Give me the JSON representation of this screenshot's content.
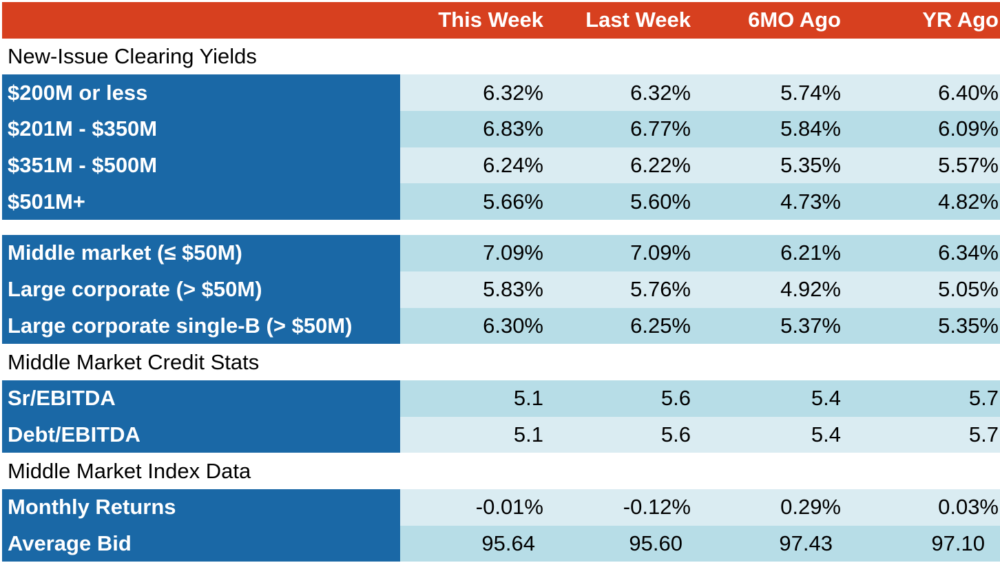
{
  "columns": [
    "This Week",
    "Last Week",
    "6MO Ago",
    "YR Ago"
  ],
  "sections": {
    "clearing": "New-Issue Clearing Yields",
    "credit": "Middle Market Credit Stats",
    "index": "Middle Market Index Data"
  },
  "rows": {
    "r0": {
      "label": "$200M or less",
      "v": [
        "6.32%",
        "6.32%",
        "5.74%",
        "6.40%"
      ]
    },
    "r1": {
      "label": "$201M - $350M",
      "v": [
        "6.83%",
        "6.77%",
        "5.84%",
        "6.09%"
      ]
    },
    "r2": {
      "label": "$351M - $500M",
      "v": [
        "6.24%",
        "6.22%",
        "5.35%",
        "5.57%"
      ]
    },
    "r3": {
      "label": "$501M+",
      "v": [
        "5.66%",
        "5.60%",
        "4.73%",
        "4.82%"
      ]
    },
    "r4": {
      "label": "Middle market (≤ $50M)",
      "v": [
        "7.09%",
        "7.09%",
        "6.21%",
        "6.34%"
      ]
    },
    "r5": {
      "label": "Large corporate (> $50M)",
      "v": [
        "5.83%",
        "5.76%",
        "4.92%",
        "5.05%"
      ]
    },
    "r6": {
      "label": "Large corporate single-B (> $50M)",
      "v": [
        "6.30%",
        "6.25%",
        "5.37%",
        "5.35%"
      ]
    },
    "r7": {
      "label": "Sr/EBITDA",
      "v": [
        "5.1",
        "5.6",
        "5.4",
        "5.7"
      ]
    },
    "r8": {
      "label": "Debt/EBITDA",
      "v": [
        "5.1",
        "5.6",
        "5.4",
        "5.7"
      ]
    },
    "r9": {
      "label": "Monthly Returns",
      "v": [
        "-0.01%",
        "-0.12%",
        "0.29%",
        "0.03%"
      ]
    },
    "r10": {
      "label": "Average Bid",
      "v": [
        "95.64",
        "95.60",
        "97.43",
        "97.10"
      ]
    }
  },
  "colors": {
    "header": "#d7401f",
    "label": "#1a68a6",
    "light": "#daecf2",
    "mid": "#b7dde7"
  },
  "chart_data": {
    "type": "table",
    "columns": [
      "This Week",
      "Last Week",
      "6MO Ago",
      "YR Ago"
    ],
    "groups": [
      {
        "name": "New-Issue Clearing Yields",
        "rows": [
          {
            "label": "$200M or less",
            "values": [
              6.32,
              6.32,
              5.74,
              6.4
            ]
          },
          {
            "label": "$201M - $350M",
            "values": [
              6.83,
              6.77,
              5.84,
              6.09
            ]
          },
          {
            "label": "$351M - $500M",
            "values": [
              6.24,
              6.22,
              5.35,
              5.57
            ]
          },
          {
            "label": "$501M+",
            "values": [
              5.66,
              5.6,
              4.73,
              4.82
            ]
          },
          {
            "label": "Middle market (≤ $50M)",
            "values": [
              7.09,
              7.09,
              6.21,
              6.34
            ]
          },
          {
            "label": "Large corporate (> $50M)",
            "values": [
              5.83,
              5.76,
              4.92,
              5.05
            ]
          },
          {
            "label": "Large corporate single-B (> $50M)",
            "values": [
              6.3,
              6.25,
              5.37,
              5.35
            ]
          }
        ]
      },
      {
        "name": "Middle Market Credit Stats",
        "rows": [
          {
            "label": "Sr/EBITDA",
            "values": [
              5.1,
              5.6,
              5.4,
              5.7
            ]
          },
          {
            "label": "Debt/EBITDA",
            "values": [
              5.1,
              5.6,
              5.4,
              5.7
            ]
          }
        ]
      },
      {
        "name": "Middle Market Index Data",
        "rows": [
          {
            "label": "Monthly Returns",
            "values": [
              -0.01,
              -0.12,
              0.29,
              0.03
            ]
          },
          {
            "label": "Average Bid",
            "values": [
              95.64,
              95.6,
              97.43,
              97.1
            ]
          }
        ]
      }
    ]
  }
}
